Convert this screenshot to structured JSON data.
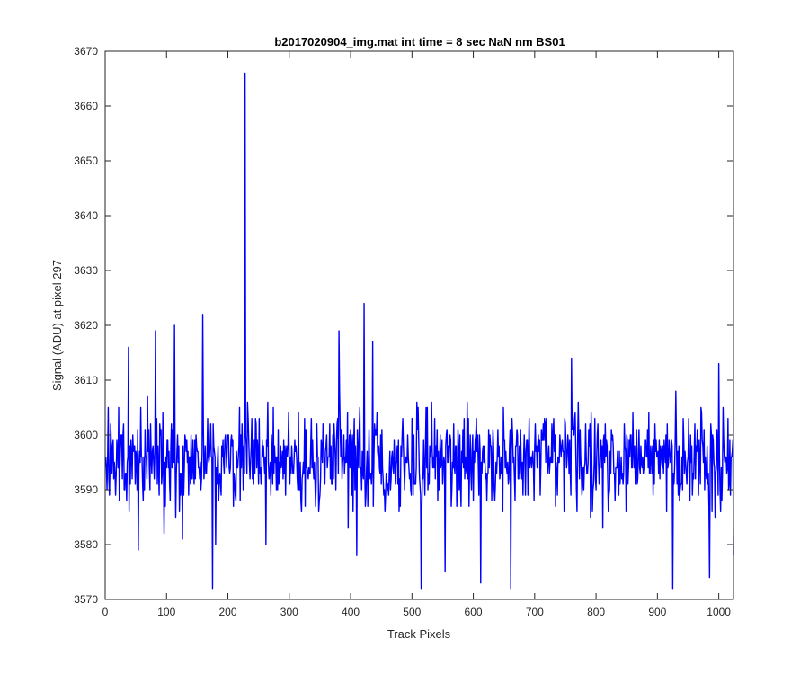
{
  "chart_data": {
    "type": "line",
    "title": "b2017020904_img.mat int time = 8 sec  NaN nm BS01",
    "xlabel": "Track Pixels",
    "ylabel": "Signal (ADU) at pixel 297",
    "xlim": [
      0,
      1024
    ],
    "ylim": [
      3570,
      3670
    ],
    "xticks": [
      0,
      100,
      200,
      300,
      400,
      500,
      600,
      700,
      800,
      900,
      1000
    ],
    "yticks": [
      3570,
      3580,
      3590,
      3600,
      3610,
      3620,
      3630,
      3640,
      3650,
      3660,
      3670
    ],
    "grid": false,
    "series": [
      {
        "color": "#0000ff",
        "noise_mean": 3595.5,
        "noise_range": [
          3572,
          3624
        ],
        "x_range": [
          1,
          1024
        ],
        "points": [
          [
            1,
            3596
          ],
          [
            3,
            3590
          ],
          [
            5,
            3605
          ],
          [
            7,
            3589
          ],
          [
            9,
            3602
          ],
          [
            38,
            3616
          ],
          [
            54,
            3579
          ],
          [
            82,
            3619
          ],
          [
            96,
            3582
          ],
          [
            113,
            3620
          ],
          [
            126,
            3581
          ],
          [
            159,
            3622
          ],
          [
            175,
            3572
          ],
          [
            180,
            3580
          ],
          [
            228,
            3666
          ],
          [
            230,
            3598
          ],
          [
            232,
            3606
          ],
          [
            262,
            3580
          ],
          [
            381,
            3619
          ],
          [
            410,
            3578
          ],
          [
            422,
            3624
          ],
          [
            436,
            3617
          ],
          [
            515,
            3572
          ],
          [
            554,
            3575
          ],
          [
            612,
            3573
          ],
          [
            661,
            3572
          ],
          [
            760,
            3614
          ],
          [
            925,
            3572
          ],
          [
            985,
            3574
          ],
          [
            1000,
            3613
          ],
          [
            1024,
            3578
          ]
        ]
      }
    ]
  }
}
